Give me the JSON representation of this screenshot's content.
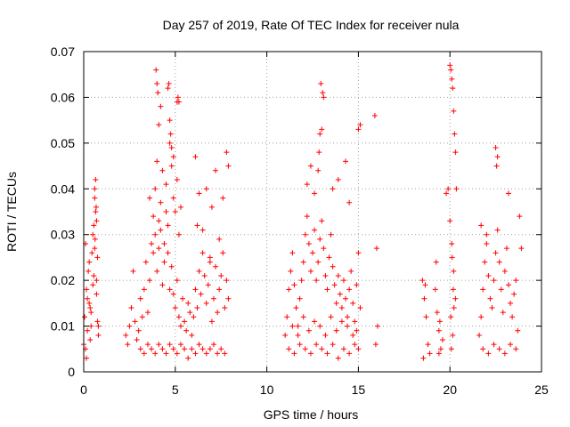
{
  "chart_data": {
    "type": "scatter",
    "title": "Day 257 of 2019, Rate Of TEC Index for receiver nula",
    "xlabel": "GPS time / hours",
    "ylabel": "ROTI / TECUs",
    "xlim": [
      0,
      25
    ],
    "ylim": [
      0,
      0.07
    ],
    "xticks": [
      0,
      5,
      10,
      15,
      20,
      25
    ],
    "yticks": [
      0,
      0.01,
      0.02,
      0.03,
      0.04,
      0.05,
      0.06,
      0.07
    ],
    "xtick_labels": [
      "0",
      "5",
      "10",
      "15",
      "20",
      "25"
    ],
    "ytick_labels": [
      "0",
      "0.01",
      "0.02",
      "0.03",
      "0.04",
      "0.05",
      "0.06",
      "0.07"
    ],
    "grid": true,
    "legend": "none",
    "marker": "+",
    "series_color": "#ff0000",
    "series": [
      {
        "x": [
          0.0,
          0.05,
          0.1,
          0.15,
          0.2,
          0.25,
          0.3,
          0.35,
          0.4,
          0.45,
          0.5,
          0.55,
          0.6,
          0.65,
          0.7,
          0.75,
          0.8,
          0.1,
          0.2,
          0.3,
          0.4,
          0.5,
          0.6,
          0.7,
          0.8,
          0.15,
          0.35,
          0.55,
          0.75,
          0.6,
          0.65,
          0.7,
          0.62,
          0.68,
          2.3,
          2.4,
          2.5,
          2.6,
          2.7,
          2.8,
          2.9,
          3.0,
          3.1,
          3.2,
          3.3,
          3.4,
          3.5,
          3.6,
          3.7,
          3.8,
          3.9,
          4.0,
          4.1,
          4.2,
          4.3,
          4.4,
          4.5,
          4.6,
          4.7,
          4.8,
          4.9,
          5.0,
          5.1,
          5.2,
          5.3,
          5.4,
          5.5,
          5.6,
          5.7,
          5.8,
          5.9,
          6.0,
          6.1,
          6.2,
          6.3,
          6.4,
          6.5,
          6.6,
          6.7,
          6.8,
          6.9,
          7.0,
          7.1,
          7.2,
          7.3,
          7.4,
          7.5,
          7.6,
          7.7,
          7.8,
          7.9,
          3.1,
          3.3,
          3.5,
          3.7,
          3.9,
          4.1,
          4.3,
          4.5,
          4.7,
          4.9,
          5.1,
          5.3,
          5.5,
          5.7,
          5.9,
          6.1,
          6.3,
          6.5,
          6.7,
          6.9,
          7.1,
          7.3,
          7.5,
          7.7,
          3.6,
          3.8,
          3.9,
          4.0,
          4.1,
          4.2,
          4.3,
          4.4,
          4.5,
          4.6,
          4.7,
          4.8,
          4.9,
          5.0,
          5.1,
          5.2,
          5.3,
          6.1,
          6.2,
          6.3,
          6.5,
          6.7,
          6.9,
          7.0,
          7.2,
          7.4,
          7.6,
          7.8,
          7.9,
          3.95,
          4.0,
          4.05,
          4.2,
          4.6,
          4.65,
          4.7,
          4.75,
          5.1,
          5.15,
          5.2,
          4.1,
          4.8,
          4.9,
          11.0,
          11.1,
          11.2,
          11.3,
          11.4,
          11.5,
          11.6,
          11.7,
          11.8,
          11.9,
          12.0,
          12.1,
          12.2,
          12.3,
          12.4,
          12.5,
          12.6,
          12.7,
          12.8,
          12.9,
          13.0,
          13.1,
          13.2,
          13.3,
          13.4,
          13.5,
          13.6,
          13.7,
          13.8,
          13.9,
          14.0,
          14.1,
          14.2,
          14.3,
          14.4,
          14.5,
          14.6,
          14.7,
          14.8,
          14.9,
          15.0,
          15.1,
          11.2,
          11.5,
          11.8,
          12.1,
          12.4,
          12.7,
          13.0,
          13.3,
          13.6,
          13.9,
          14.2,
          14.5,
          14.8,
          15.0,
          11.4,
          11.7,
          12.0,
          12.3,
          12.6,
          12.9,
          13.2,
          13.5,
          13.8,
          14.1,
          14.4,
          14.7,
          14.9,
          12.2,
          12.4,
          12.6,
          12.8,
          12.9,
          13.0,
          13.1,
          12.95,
          13.05,
          12.85,
          13.6,
          13.9,
          14.3,
          14.5,
          15.0,
          15.1,
          15.9,
          16.0,
          16.05,
          15.95,
          18.5,
          18.6,
          18.7,
          18.8,
          18.9,
          19.2,
          19.3,
          19.4,
          19.5,
          19.6,
          18.55,
          18.65,
          19.25,
          19.45,
          19.4,
          20.0,
          20.05,
          20.1,
          20.15,
          20.2,
          20.25,
          20.3,
          20.35,
          20.0,
          20.1,
          20.2,
          20.3,
          20.05,
          20.15,
          20.08,
          20.12,
          20.18,
          20.22,
          19.8,
          19.9,
          21.6,
          21.7,
          21.8,
          21.9,
          22.0,
          22.1,
          22.2,
          22.3,
          22.4,
          22.5,
          22.6,
          22.7,
          22.8,
          22.9,
          23.0,
          23.1,
          23.2,
          23.3,
          23.4,
          23.5,
          23.6,
          23.7,
          21.8,
          22.1,
          22.4,
          22.7,
          23.0,
          23.3,
          23.6,
          22.5,
          22.6,
          22.55,
          23.2,
          23.8,
          23.9,
          21.7,
          22.0
        ],
        "y": [
          0.006,
          0.012,
          0.028,
          0.018,
          0.009,
          0.022,
          0.015,
          0.007,
          0.01,
          0.026,
          0.03,
          0.032,
          0.038,
          0.042,
          0.02,
          0.011,
          0.008,
          0.005,
          0.016,
          0.024,
          0.013,
          0.019,
          0.027,
          0.017,
          0.01,
          0.003,
          0.014,
          0.021,
          0.025,
          0.04,
          0.035,
          0.033,
          0.029,
          0.036,
          0.008,
          0.006,
          0.01,
          0.014,
          0.022,
          0.011,
          0.007,
          0.009,
          0.016,
          0.012,
          0.018,
          0.024,
          0.013,
          0.02,
          0.028,
          0.034,
          0.03,
          0.022,
          0.027,
          0.031,
          0.019,
          0.024,
          0.035,
          0.026,
          0.018,
          0.023,
          0.017,
          0.014,
          0.02,
          0.012,
          0.01,
          0.016,
          0.011,
          0.009,
          0.015,
          0.013,
          0.008,
          0.012,
          0.018,
          0.014,
          0.022,
          0.017,
          0.026,
          0.021,
          0.015,
          0.019,
          0.024,
          0.011,
          0.016,
          0.023,
          0.013,
          0.018,
          0.021,
          0.026,
          0.014,
          0.02,
          0.016,
          0.005,
          0.004,
          0.006,
          0.005,
          0.004,
          0.006,
          0.005,
          0.004,
          0.006,
          0.005,
          0.004,
          0.006,
          0.005,
          0.003,
          0.005,
          0.004,
          0.006,
          0.005,
          0.004,
          0.005,
          0.006,
          0.004,
          0.005,
          0.004,
          0.038,
          0.026,
          0.04,
          0.046,
          0.033,
          0.037,
          0.044,
          0.028,
          0.041,
          0.032,
          0.05,
          0.045,
          0.038,
          0.035,
          0.042,
          0.03,
          0.036,
          0.047,
          0.032,
          0.039,
          0.031,
          0.04,
          0.025,
          0.036,
          0.044,
          0.029,
          0.038,
          0.048,
          0.045,
          0.066,
          0.063,
          0.061,
          0.058,
          0.062,
          0.063,
          0.055,
          0.052,
          0.059,
          0.06,
          0.059,
          0.054,
          0.049,
          0.047,
          0.008,
          0.012,
          0.018,
          0.022,
          0.026,
          0.019,
          0.014,
          0.01,
          0.016,
          0.02,
          0.024,
          0.03,
          0.034,
          0.028,
          0.022,
          0.026,
          0.031,
          0.02,
          0.024,
          0.029,
          0.033,
          0.027,
          0.021,
          0.018,
          0.025,
          0.03,
          0.023,
          0.019,
          0.015,
          0.021,
          0.017,
          0.014,
          0.02,
          0.016,
          0.012,
          0.018,
          0.022,
          0.015,
          0.011,
          0.019,
          0.026,
          0.014,
          0.005,
          0.004,
          0.006,
          0.005,
          0.004,
          0.006,
          0.005,
          0.004,
          0.006,
          0.003,
          0.005,
          0.004,
          0.006,
          0.005,
          0.01,
          0.008,
          0.012,
          0.009,
          0.011,
          0.01,
          0.008,
          0.012,
          0.009,
          0.011,
          0.01,
          0.008,
          0.009,
          0.041,
          0.045,
          0.039,
          0.044,
          0.052,
          0.053,
          0.06,
          0.063,
          0.061,
          0.048,
          0.04,
          0.042,
          0.046,
          0.037,
          0.053,
          0.054,
          0.056,
          0.027,
          0.01,
          0.006,
          0.02,
          0.016,
          0.012,
          0.006,
          0.004,
          0.018,
          0.013,
          0.009,
          0.005,
          0.007,
          0.003,
          0.019,
          0.024,
          0.011,
          0.004,
          0.067,
          0.066,
          0.064,
          0.062,
          0.057,
          0.052,
          0.048,
          0.04,
          0.033,
          0.028,
          0.022,
          0.016,
          0.012,
          0.008,
          0.005,
          0.025,
          0.018,
          0.014,
          0.039,
          0.04,
          0.008,
          0.012,
          0.018,
          0.024,
          0.028,
          0.021,
          0.016,
          0.014,
          0.02,
          0.026,
          0.031,
          0.024,
          0.018,
          0.013,
          0.022,
          0.027,
          0.019,
          0.015,
          0.012,
          0.017,
          0.02,
          0.009,
          0.005,
          0.004,
          0.006,
          0.005,
          0.004,
          0.006,
          0.005,
          0.049,
          0.047,
          0.045,
          0.039,
          0.034,
          0.027,
          0.032,
          0.03
        ]
      }
    ]
  }
}
